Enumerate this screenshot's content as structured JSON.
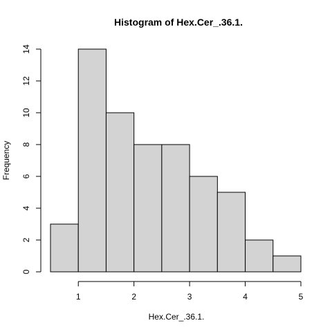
{
  "chart_data": {
    "type": "bar",
    "title": "Histogram of Hex.Cer_.36.1.",
    "xlabel": "Hex.Cer_.36.1.",
    "ylabel": "Frequency",
    "bins": [
      {
        "start": 0.5,
        "end": 1.0,
        "count": 3
      },
      {
        "start": 1.0,
        "end": 1.5,
        "count": 14
      },
      {
        "start": 1.5,
        "end": 2.0,
        "count": 10
      },
      {
        "start": 2.0,
        "end": 2.5,
        "count": 8
      },
      {
        "start": 2.5,
        "end": 3.0,
        "count": 8
      },
      {
        "start": 3.0,
        "end": 3.5,
        "count": 6
      },
      {
        "start": 3.5,
        "end": 4.0,
        "count": 5
      },
      {
        "start": 4.0,
        "end": 4.5,
        "count": 2
      },
      {
        "start": 4.5,
        "end": 5.0,
        "count": 1
      }
    ],
    "xlim": [
      0.5,
      5.0
    ],
    "ylim": [
      0,
      14
    ],
    "x_ticks": [
      1,
      2,
      3,
      4,
      5
    ],
    "y_ticks": [
      0,
      2,
      4,
      6,
      8,
      10,
      12,
      14
    ],
    "bar_color": "#d3d3d3",
    "grid": false
  }
}
